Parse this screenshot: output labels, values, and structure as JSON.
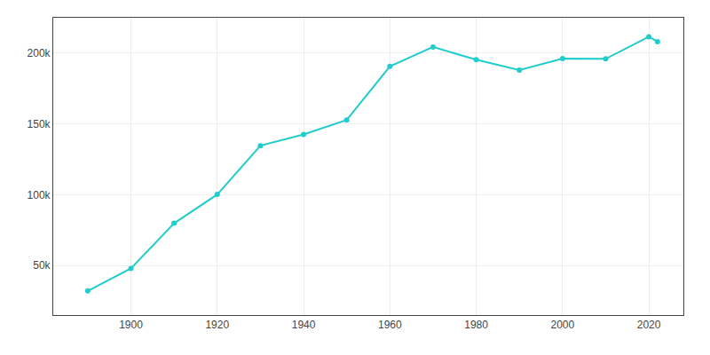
{
  "chart_data": {
    "type": "line",
    "x": [
      1890,
      1900,
      1910,
      1920,
      1930,
      1940,
      1950,
      1960,
      1970,
      1980,
      1990,
      2000,
      2010,
      2020,
      2022
    ],
    "values": [
      32033,
      47931,
      79803,
      100176,
      134646,
      142598,
      152798,
      190634,
      204370,
      195351,
      188082,
      196086,
      195976,
      211569,
      208080
    ],
    "color": "#22CCCC",
    "marker": "circle",
    "line_style": "solid",
    "xlim": [
      1882,
      2028
    ],
    "xticks": [
      1900,
      1920,
      1940,
      1960,
      1980,
      2000,
      2020
    ],
    "ylim": [
      15000,
      225000
    ],
    "yticks": [
      {
        "value": 50000,
        "label": "50k"
      },
      {
        "value": 100000,
        "label": "100k"
      },
      {
        "value": 150000,
        "label": "150k"
      },
      {
        "value": 200000,
        "label": "200k"
      }
    ],
    "grid": true
  }
}
